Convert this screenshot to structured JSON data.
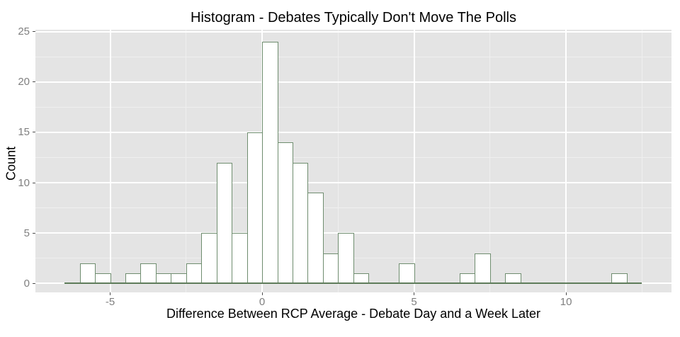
{
  "chart_data": {
    "type": "bar",
    "subtype": "histogram",
    "title": "Histogram - Debates Typically Don't Move The Polls",
    "xlabel": "Difference Between RCP Average - Debate Day and a Week Later",
    "ylabel": "Count",
    "bin_width": 0.5,
    "bin_edges": [
      -6.5,
      -6.0,
      -5.5,
      -5.0,
      -4.5,
      -4.0,
      -3.5,
      -3.0,
      -2.5,
      -2.0,
      -1.5,
      -1.0,
      -0.5,
      0.0,
      0.5,
      1.0,
      1.5,
      2.0,
      2.5,
      3.0,
      3.5,
      4.0,
      4.5,
      5.0,
      5.5,
      6.0,
      6.5,
      7.0,
      7.5,
      8.0,
      8.5,
      9.0,
      9.5,
      10.0,
      10.5,
      11.0,
      11.5,
      12.0,
      12.5
    ],
    "counts": [
      0,
      2,
      1,
      0,
      1,
      2,
      1,
      1,
      2,
      5,
      12,
      5,
      15,
      24,
      14,
      12,
      9,
      3,
      5,
      1,
      0,
      0,
      2,
      0,
      0,
      0,
      1,
      3,
      0,
      1,
      0,
      0,
      0,
      0,
      0,
      0,
      1,
      0
    ],
    "total_count": 123,
    "xlim": [
      -7.46,
      13.47
    ],
    "ylim": [
      -0.9,
      25.2
    ],
    "baseline_range": [
      -6.5,
      12.5
    ],
    "x_ticks": {
      "values": [
        -5,
        0,
        5,
        10
      ],
      "labels": [
        "-5",
        "0",
        "5",
        "10"
      ]
    },
    "y_ticks": {
      "values": [
        0,
        5,
        10,
        15,
        20,
        25
      ],
      "labels": [
        "0",
        "5",
        "10",
        "15",
        "20",
        "25"
      ]
    },
    "x_minor_gridlines": [
      -2.5,
      2.5,
      7.5,
      12.5
    ],
    "y_minor_gridlines": [
      2.5,
      7.5,
      12.5,
      17.5,
      22.5
    ],
    "grid": true,
    "legend_position": "none",
    "colors": {
      "page_bg": "#ffffff",
      "panel_bg": "#e4e4e4",
      "grid_major": "#ffffff",
      "grid_minor": "#efefef",
      "bar_fill": "#ffffff",
      "bar_border": "#6f8d6f",
      "baseline": "#5e7c5a",
      "tick_mark": "#4d4d4d",
      "tick_label": "#7f7f7f",
      "title_text": "#000000"
    }
  }
}
